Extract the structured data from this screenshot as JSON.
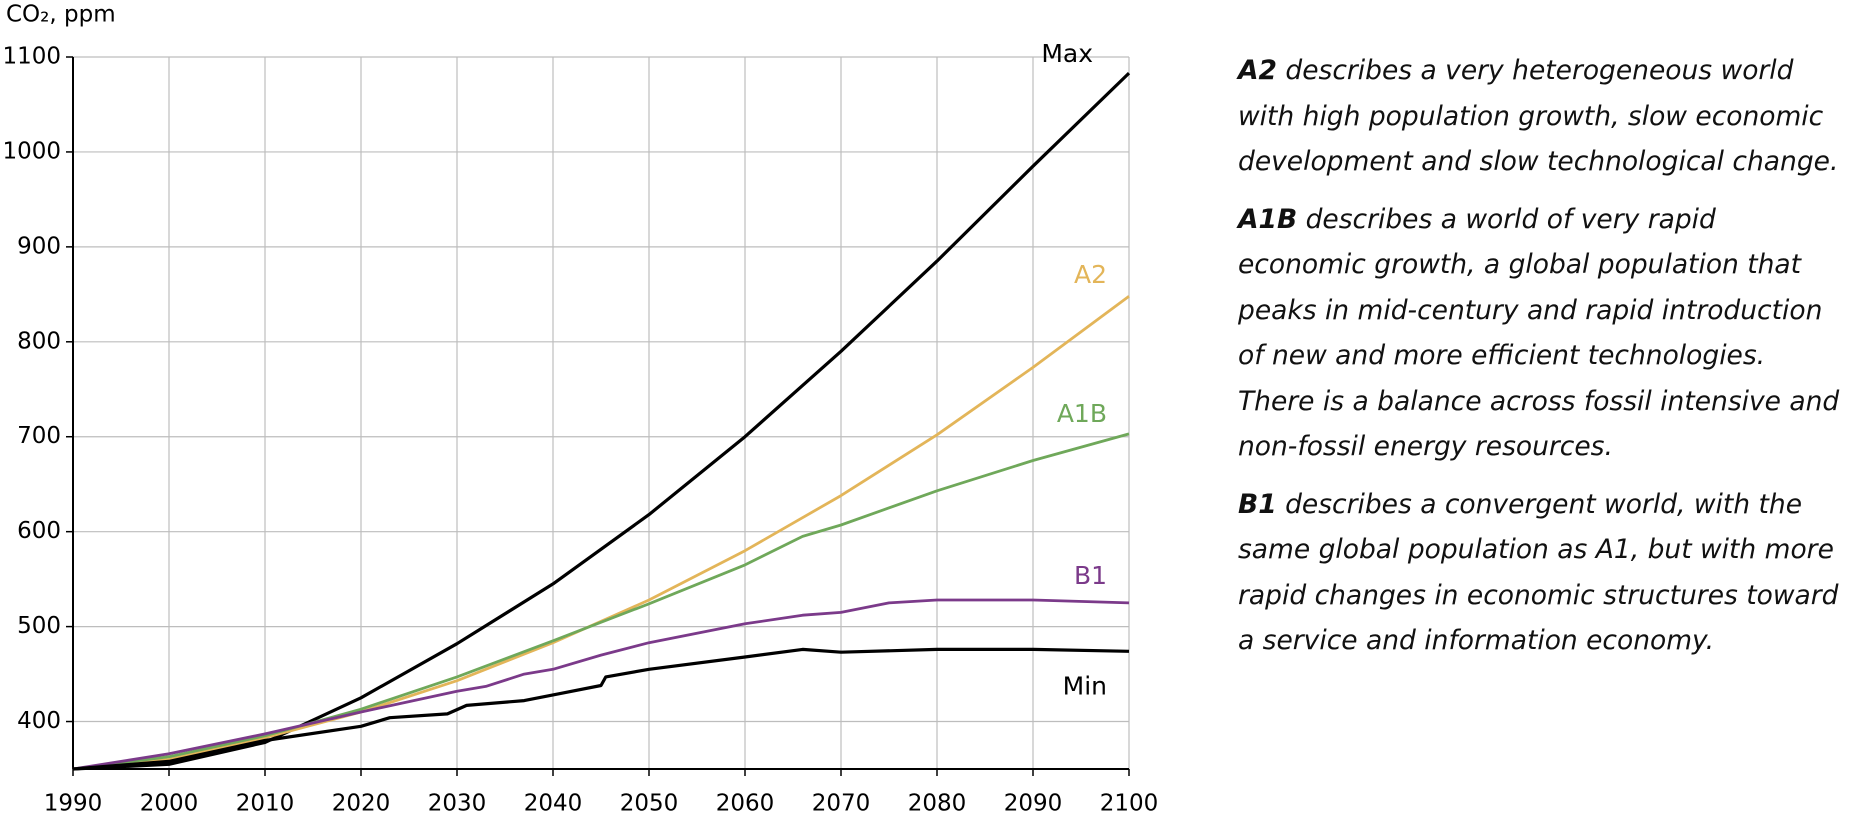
{
  "chart_data": {
    "type": "line",
    "y_label": "CO₂, ppm",
    "xlim": [
      1990,
      2100
    ],
    "xticks": [
      1990,
      2000,
      2010,
      2020,
      2030,
      2040,
      2050,
      2060,
      2070,
      2080,
      2090,
      2100
    ],
    "ylim": [
      350,
      1100
    ],
    "yticks": [
      400,
      500,
      600,
      700,
      800,
      900,
      1000,
      1100
    ],
    "grid": true,
    "series": [
      {
        "name": "Max",
        "color": "#000000",
        "x": [
          1990,
          2000,
          2010,
          2020,
          2030,
          2040,
          2050,
          2060,
          2070,
          2080,
          2090,
          2100
        ],
        "values": [
          350,
          355,
          378,
          425,
          482,
          545,
          618,
          700,
          790,
          885,
          985,
          1083
        ]
      },
      {
        "name": "A2",
        "color": "#e3b559",
        "x": [
          1990,
          2000,
          2010,
          2020,
          2030,
          2040,
          2050,
          2060,
          2070,
          2080,
          2090,
          2100
        ],
        "values": [
          350,
          360,
          383,
          410,
          443,
          483,
          528,
          580,
          638,
          702,
          773,
          848
        ]
      },
      {
        "name": "A1B",
        "color": "#6fa85a",
        "x": [
          1990,
          2000,
          2010,
          2020,
          2030,
          2040,
          2050,
          2060,
          2066,
          2070,
          2080,
          2090,
          2100
        ],
        "values": [
          350,
          363,
          385,
          413,
          447,
          485,
          524,
          565,
          595,
          607,
          643,
          675,
          703
        ]
      },
      {
        "name": "B1",
        "color": "#7b3a8a",
        "x": [
          1990,
          2000,
          2010,
          2020,
          2030,
          2033,
          2037,
          2040,
          2045,
          2050,
          2060,
          2066,
          2070,
          2075,
          2080,
          2090,
          2100
        ],
        "values": [
          350,
          366,
          387,
          410,
          432,
          437,
          450,
          455,
          470,
          483,
          503,
          512,
          515,
          525,
          528,
          528,
          525
        ]
      },
      {
        "name": "Min",
        "color": "#000000",
        "x": [
          1990,
          2000,
          2010,
          2020,
          2023,
          2029,
          2031,
          2037,
          2041,
          2045,
          2045.5,
          2050,
          2060,
          2066,
          2070,
          2080,
          2090,
          2100
        ],
        "values": [
          350,
          358,
          380,
          395,
          404,
          408,
          417,
          422,
          430,
          438,
          447,
          455,
          468,
          476,
          473,
          476,
          476,
          474
        ]
      }
    ]
  },
  "notes": [
    {
      "term": "A2",
      "text": "describes a very heterogeneous world with high population growth, slow economic development and slow technological change."
    },
    {
      "term": "A1B",
      "text": "describes a world of very rapid economic growth, a global population that peaks in mid-century and rapid introduction of new and more efficient technologies. There is a balance across fossil intensive and non-fossil energy resources."
    },
    {
      "term": "B1",
      "text": "describes a convergent world, with the same global population as A1, but with more rapid changes in economic structures toward a service and information economy."
    }
  ]
}
